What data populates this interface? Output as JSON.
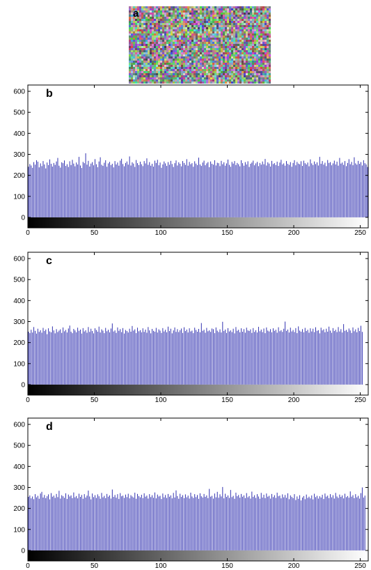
{
  "panel_a": {
    "label": "a"
  },
  "chart_data": [
    {
      "type": "bar",
      "panel_label": "b",
      "xlim": [
        0,
        256
      ],
      "ylim": [
        -50,
        630
      ],
      "yticks": [
        0,
        100,
        200,
        300,
        400,
        500,
        600
      ],
      "xticks": [
        0,
        50,
        100,
        150,
        200,
        250
      ],
      "xtick_labels": [
        "0",
        "50",
        "100",
        "150",
        "200",
        "250"
      ],
      "ytick_labels": [
        "0",
        "100",
        "200",
        "300",
        "400",
        "500",
        "600"
      ],
      "bar_color": "#1c1ca8",
      "colorbar": "grayscale 0-255",
      "grid": false,
      "values": [
        241,
        254,
        247,
        236,
        263,
        251,
        272,
        265,
        238,
        257,
        244,
        268,
        252,
        233,
        261,
        249,
        276,
        255,
        242,
        259,
        250,
        266,
        283,
        246,
        237,
        262,
        258,
        271,
        245,
        253,
        240,
        267,
        249,
        274,
        256,
        243,
        261,
        252,
        288,
        247,
        235,
        264,
        258,
        305,
        251,
        269,
        242,
        256,
        263,
        248,
        277,
        253,
        239,
        266,
        286,
        250,
        245,
        260,
        272,
        241,
        257,
        264,
        249,
        255,
        238,
        268,
        252,
        261,
        246,
        270,
        279,
        254,
        243,
        259,
        266,
        251,
        290,
        247,
        262,
        256,
        240,
        273,
        258,
        249,
        265,
        253,
        244,
        268,
        257,
        281,
        250,
        263,
        246,
        255,
        242,
        270,
        259,
        274,
        248,
        261,
        236,
        252,
        266,
        257,
        245,
        263,
        251,
        269,
        254,
        240,
        258,
        271,
        247,
        262,
        255,
        243,
        268,
        259,
        250,
        277,
        246,
        264,
        253,
        258,
        241,
        267,
        256,
        249,
        284,
        252,
        245,
        261,
        270,
        248,
        257,
        263,
        239,
        266,
        255,
        251,
        272,
        247,
        260,
        258,
        244,
        269,
        253,
        262,
        246,
        257,
        275,
        250,
        241,
        264,
        256,
        268,
        249,
        259,
        253,
        243,
        272,
        258,
        246,
        263,
        252,
        267,
        240,
        255,
        261,
        270,
        248,
        257,
        264,
        244,
        259,
        251,
        266,
        253,
        278,
        247,
        262,
        256,
        242,
        269,
        254,
        258,
        249,
        265,
        245,
        261,
        274,
        252,
        257,
        246,
        268,
        255,
        250,
        263,
        241,
        259,
        272,
        248,
        264,
        256,
        253,
        267,
        245,
        270,
        258,
        252,
        261,
        243,
        276,
        257,
        249,
        266,
        254,
        262,
        247,
        288,
        255,
        268,
        251,
        260,
        244,
        273,
        259,
        263,
        248,
        257,
        270,
        252,
        265,
        246,
        283,
        256,
        261,
        250,
        268,
        244,
        259,
        277,
        253,
        264,
        248,
        286,
        257,
        251,
        269,
        255,
        263,
        247,
        272,
        258,
        252,
        240
      ]
    },
    {
      "type": "bar",
      "panel_label": "c",
      "xlim": [
        0,
        256
      ],
      "ylim": [
        -50,
        630
      ],
      "yticks": [
        0,
        100,
        200,
        300,
        400,
        500,
        600
      ],
      "xticks": [
        0,
        50,
        100,
        150,
        200,
        250
      ],
      "xtick_labels": [
        "0",
        "50",
        "100",
        "150",
        "200",
        "250"
      ],
      "ytick_labels": [
        "0",
        "100",
        "200",
        "300",
        "400",
        "500",
        "600"
      ],
      "bar_color": "#1c1ca8",
      "colorbar": "grayscale 0-255",
      "grid": false,
      "values": [
        252,
        245,
        261,
        248,
        274,
        256,
        243,
        266,
        251,
        259,
        247,
        270,
        255,
        262,
        240,
        268,
        253,
        249,
        277,
        258,
        244,
        264,
        250,
        257,
        263,
        246,
        272,
        254,
        260,
        248,
        267,
        281,
        252,
        245,
        265,
        258,
        249,
        271,
        256,
        262,
        243,
        269,
        253,
        259,
        247,
        274,
        251,
        266,
        255,
        244,
        268,
        260,
        252,
        276,
        248,
        263,
        257,
        245,
        270,
        254,
        261,
        249,
        267,
        291,
        253,
        258,
        246,
        272,
        256,
        264,
        250,
        269,
        243,
        260,
        255,
        248,
        266,
        252,
        279,
        257,
        263,
        245,
        271,
        254,
        259,
        249,
        268,
        251,
        262,
        247,
        274,
        258,
        244,
        265,
        256,
        252,
        270,
        248,
        263,
        257,
        246,
        269,
        253,
        261,
        249,
        276,
        255,
        266,
        244,
        258,
        272,
        251,
        264,
        250,
        259,
        267,
        246,
        273,
        255,
        262,
        248,
        268,
        253,
        257,
        245,
        271,
        260,
        252,
        265,
        249,
        293,
        256,
        261,
        247,
        270,
        254,
        258,
        251,
        267,
        264,
        245,
        272,
        257,
        250,
        263,
        248,
        299,
        255,
        262,
        246,
        269,
        253,
        258,
        250,
        266,
        244,
        274,
        256,
        261,
        249,
        268,
        252,
        264,
        247,
        271,
        258,
        255,
        263,
        246,
        269,
        251,
        259,
        248,
        275,
        254,
        262,
        250,
        267,
        245,
        272,
        257,
        253,
        264,
        249,
        268,
        256,
        261,
        247,
        273,
        254,
        259,
        251,
        266,
        300,
        256,
        262,
        248,
        271,
        253,
        260,
        250,
        269,
        245,
        277,
        257,
        252,
        264,
        249,
        270,
        255,
        261,
        247,
        268,
        253,
        266,
        250,
        273,
        256,
        259,
        244,
        271,
        258,
        263,
        249,
        266,
        252,
        276,
        257,
        247,
        269,
        255,
        261,
        250,
        274,
        253,
        264,
        248,
        288,
        256,
        260,
        251,
        267,
        258,
        246,
        272,
        254,
        263,
        249,
        270,
        255,
        280,
        251
      ]
    },
    {
      "type": "bar",
      "panel_label": "d",
      "xlim": [
        0,
        256
      ],
      "ylim": [
        -50,
        630
      ],
      "yticks": [
        0,
        100,
        200,
        300,
        400,
        500,
        600
      ],
      "xticks": [
        0,
        50,
        100,
        150,
        200,
        250
      ],
      "xtick_labels": [
        "0",
        "50",
        "100",
        "150",
        "200",
        "250"
      ],
      "ytick_labels": [
        "0",
        "100",
        "200",
        "300",
        "400",
        "500",
        "600"
      ],
      "bar_color": "#1c1ca8",
      "colorbar": "grayscale 0-255",
      "grid": false,
      "values": [
        255,
        262,
        248,
        257,
        244,
        268,
        253,
        260,
        246,
        271,
        279,
        252,
        264,
        249,
        258,
        267,
        243,
        273,
        256,
        261,
        250,
        269,
        254,
        284,
        247,
        263,
        258,
        251,
        272,
        245,
        266,
        257,
        262,
        249,
        276,
        253,
        259,
        248,
        270,
        255,
        264,
        246,
        268,
        252,
        261,
        285,
        257,
        243,
        271,
        254,
        263,
        250,
        267,
        258,
        246,
        274,
        253,
        260,
        249,
        269,
        256,
        262,
        247,
        290,
        255,
        264,
        251,
        268,
        245,
        273,
        258,
        261,
        250,
        266,
        254,
        270,
        248,
        263,
        257,
        252,
        275,
        246,
        269,
        259,
        253,
        265,
        249,
        272,
        256,
        261,
        247,
        268,
        254,
        263,
        251,
        276,
        248,
        266,
        257,
        260,
        245,
        271,
        253,
        264,
        250,
        269,
        256,
        262,
        248,
        274,
        252,
        286,
        259,
        246,
        270,
        255,
        263,
        249,
        267,
        253,
        261,
        247,
        275,
        257,
        250,
        268,
        254,
        264,
        246,
        272,
        258,
        252,
        269,
        255,
        262,
        249,
        293,
        256,
        260,
        247,
        271,
        253,
        279,
        251,
        267,
        257,
        302,
        248,
        270,
        255,
        262,
        250,
        288,
        254,
        260,
        246,
        275,
        258,
        264,
        251,
        269,
        256,
        262,
        249,
        273,
        253,
        259,
        247,
        280,
        255,
        263,
        250,
        268,
        257,
        246,
        274,
        252,
        265,
        249,
        271,
        256,
        260,
        247,
        269,
        254,
        263,
        250,
        275,
        258,
        261,
        248,
        267,
        253,
        264,
        251,
        272,
        244,
        262,
        255,
        249,
        268,
        240,
        257,
        246,
        263,
        238,
        252,
        259,
        244,
        266,
        250,
        256,
        248,
        262,
        243,
        270,
        254,
        260,
        247,
        258,
        252,
        265,
        245,
        271,
        256,
        261,
        249,
        268,
        253,
        263,
        247,
        274,
        257,
        250,
        266,
        255,
        262,
        248,
        270,
        254,
        259,
        251,
        281,
        256,
        263,
        249,
        268,
        253,
        260,
        247,
        273,
        300,
        252,
        261
      ]
    }
  ]
}
